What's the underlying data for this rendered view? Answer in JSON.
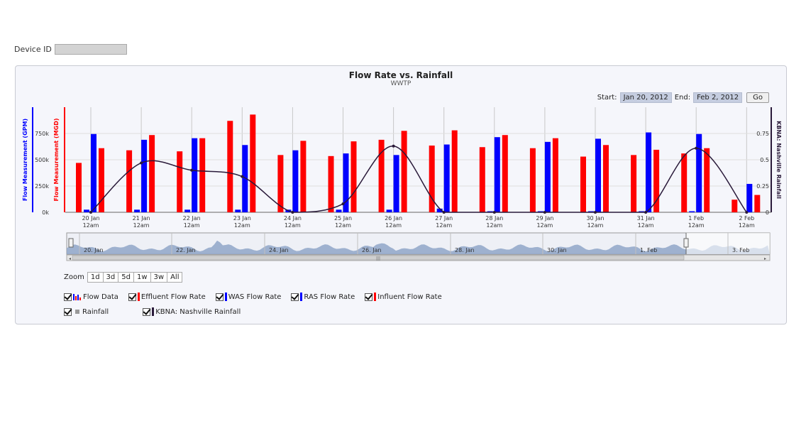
{
  "device": {
    "label": "Device ID",
    "value": ""
  },
  "chart_header": {
    "title": "Flow Rate vs. Rainfall",
    "subtitle": "WWTP"
  },
  "range": {
    "start_label": "Start:",
    "start": "Jan 20, 2012",
    "end_label": "End:",
    "end": "Feb 2, 2012",
    "go": "Go"
  },
  "zoom": {
    "label": "Zoom",
    "buttons": [
      "1d",
      "3d",
      "5d",
      "1w",
      "3w",
      "All"
    ]
  },
  "legend": {
    "row1": [
      "Flow Data",
      "Effluent Flow Rate",
      "WAS Flow Rate",
      "RAS Flow Rate",
      "Influent Flow Rate"
    ],
    "row2": [
      "Rainfall",
      "KBNA: Nashville Rainfall"
    ]
  },
  "colors": {
    "blue": "#0000ff",
    "red": "#ff0000",
    "rain": "#2a1a3a",
    "navigator": "#8fa6c8"
  },
  "chart_data": {
    "type": "bar",
    "title": "Flow Rate vs. Rainfall",
    "subtitle": "WWTP",
    "categories": [
      "20 Jan 12am",
      "21 Jan 12am",
      "22 Jan 12am",
      "23 Jan 12am",
      "24 Jan 12am",
      "25 Jan 12am",
      "26 Jan 12am",
      "27 Jan 12am",
      "28 Jan 12am",
      "29 Jan 12am",
      "30 Jan 12am",
      "31 Jan 12am",
      "1 Feb 12am",
      "2 Feb 12am"
    ],
    "y_left_gpm": {
      "label": "Flow Measurement (GPM)",
      "ticks": [
        "0k",
        "250k",
        "500k",
        "750k"
      ],
      "ylim": [
        0,
        1000
      ]
    },
    "y_left_mgd": {
      "label": "Flow Measurement (MGD)"
    },
    "y_right": {
      "label": "KBNA: Nashville Rainfall",
      "ticks": [
        "0",
        "0.25",
        "0.5",
        "0.75"
      ],
      "ylim": [
        0,
        1
      ]
    },
    "series": [
      {
        "name": "Effluent Flow Rate",
        "color": "#ff0000",
        "values": [
          470,
          590,
          580,
          870,
          545,
          535,
          690,
          635,
          620,
          610,
          530,
          545,
          560,
          120
        ]
      },
      {
        "name": "WAS Flow Rate",
        "color": "#0000ff",
        "values": [
          25,
          25,
          25,
          25,
          25,
          25,
          25,
          35,
          10,
          10,
          10,
          10,
          10,
          0
        ]
      },
      {
        "name": "RAS Flow Rate",
        "color": "#0000ff",
        "values": [
          745,
          690,
          705,
          640,
          590,
          560,
          545,
          645,
          715,
          670,
          700,
          760,
          745,
          270
        ]
      },
      {
        "name": "Influent Flow Rate",
        "color": "#ff0000",
        "values": [
          610,
          735,
          705,
          930,
          680,
          675,
          775,
          780,
          735,
          705,
          640,
          595,
          610,
          165
        ]
      }
    ],
    "rainfall": {
      "name": "KBNA: Nashville Rainfall",
      "points": [
        [
          0,
          0
        ],
        [
          1,
          0.47
        ],
        [
          2,
          0.4
        ],
        [
          3,
          0.34
        ],
        [
          4,
          0
        ],
        [
          5,
          0.08
        ],
        [
          6,
          0.63
        ],
        [
          7,
          0
        ],
        [
          8,
          0
        ],
        [
          9,
          0
        ],
        [
          10,
          0
        ],
        [
          11,
          0
        ],
        [
          12,
          0.61
        ],
        [
          13,
          0
        ]
      ]
    },
    "navigator_labels": [
      "20. Jan",
      "22. Jan",
      "24. Jan",
      "26. Jan",
      "28. Jan",
      "30. Jan",
      "1. Feb",
      "3. Feb"
    ]
  }
}
